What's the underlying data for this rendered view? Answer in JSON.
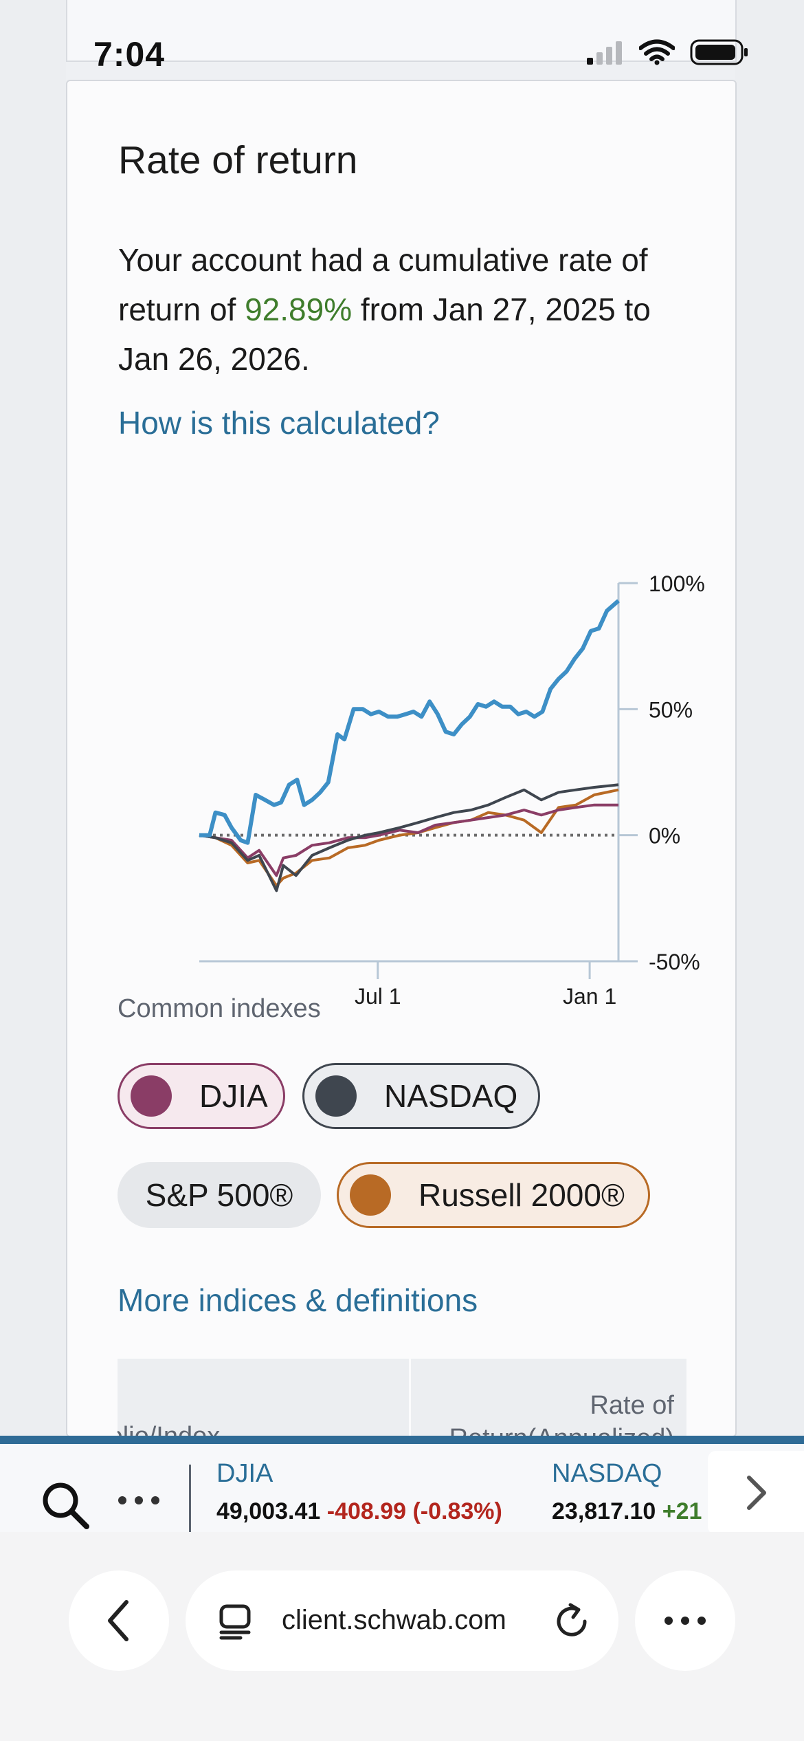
{
  "status_bar": {
    "time": "7:04"
  },
  "card": {
    "title": "Rate of return",
    "summary_prefix": "Your account had a cumulative rate of return of ",
    "summary_value": "92.89%",
    "summary_suffix": " from Jan 27, 2025 to Jan 26, 2026.",
    "how_link": "How is this calculated?"
  },
  "chart_data": {
    "type": "line",
    "x_tick_labels": [
      "Jul 1",
      "Jan 1"
    ],
    "y_tick_labels": [
      "100%",
      "50%",
      "0%",
      "-50%"
    ],
    "ylim": [
      -50,
      100
    ],
    "baseline": 0,
    "series": [
      {
        "color": "#3d8fc6",
        "points": [
          [
            "2025-01-27",
            0
          ],
          [
            "2025-02-05",
            0
          ],
          [
            "2025-02-10",
            9
          ],
          [
            "2025-02-18",
            8
          ],
          [
            "2025-02-24",
            3
          ],
          [
            "2025-03-04",
            -2
          ],
          [
            "2025-03-10",
            -3
          ],
          [
            "2025-03-17",
            16
          ],
          [
            "2025-03-25",
            14
          ],
          [
            "2025-04-02",
            12
          ],
          [
            "2025-04-08",
            13
          ],
          [
            "2025-04-15",
            20
          ],
          [
            "2025-04-22",
            22
          ],
          [
            "2025-04-28",
            12
          ],
          [
            "2025-05-05",
            14
          ],
          [
            "2025-05-12",
            17
          ],
          [
            "2025-05-19",
            21
          ],
          [
            "2025-05-27",
            40
          ],
          [
            "2025-06-02",
            38
          ],
          [
            "2025-06-10",
            50
          ],
          [
            "2025-06-18",
            50
          ],
          [
            "2025-06-25",
            48
          ],
          [
            "2025-07-02",
            49
          ],
          [
            "2025-07-10",
            47
          ],
          [
            "2025-07-18",
            47
          ],
          [
            "2025-07-25",
            48
          ],
          [
            "2025-08-01",
            49
          ],
          [
            "2025-08-08",
            47
          ],
          [
            "2025-08-15",
            53
          ],
          [
            "2025-08-22",
            48
          ],
          [
            "2025-08-29",
            41
          ],
          [
            "2025-09-05",
            40
          ],
          [
            "2025-09-12",
            44
          ],
          [
            "2025-09-19",
            47
          ],
          [
            "2025-09-26",
            52
          ],
          [
            "2025-10-03",
            51
          ],
          [
            "2025-10-10",
            53
          ],
          [
            "2025-10-17",
            51
          ],
          [
            "2025-10-24",
            51
          ],
          [
            "2025-10-31",
            48
          ],
          [
            "2025-11-07",
            49
          ],
          [
            "2025-11-14",
            47
          ],
          [
            "2025-11-21",
            49
          ],
          [
            "2025-11-28",
            58
          ],
          [
            "2025-12-05",
            62
          ],
          [
            "2025-12-12",
            65
          ],
          [
            "2025-12-19",
            70
          ],
          [
            "2025-12-26",
            74
          ],
          [
            "2026-01-02",
            81
          ],
          [
            "2026-01-09",
            82
          ],
          [
            "2026-01-16",
            89
          ],
          [
            "2026-01-26",
            93
          ]
        ]
      },
      {
        "name": "DJIA",
        "color": "#8a3d66",
        "points": [
          [
            "2025-01-27",
            0
          ],
          [
            "2025-02-10",
            -1
          ],
          [
            "2025-02-24",
            -2
          ],
          [
            "2025-03-10",
            -9
          ],
          [
            "2025-03-20",
            -6
          ],
          [
            "2025-04-04",
            -16
          ],
          [
            "2025-04-10",
            -9
          ],
          [
            "2025-04-21",
            -8
          ],
          [
            "2025-05-05",
            -4
          ],
          [
            "2025-05-20",
            -3
          ],
          [
            "2025-06-05",
            -1
          ],
          [
            "2025-06-20",
            -1
          ],
          [
            "2025-07-02",
            0
          ],
          [
            "2025-07-20",
            2
          ],
          [
            "2025-08-05",
            1
          ],
          [
            "2025-08-20",
            4
          ],
          [
            "2025-09-05",
            5
          ],
          [
            "2025-09-20",
            6
          ],
          [
            "2025-10-05",
            7
          ],
          [
            "2025-10-20",
            8
          ],
          [
            "2025-11-05",
            10
          ],
          [
            "2025-11-20",
            8
          ],
          [
            "2025-12-05",
            10
          ],
          [
            "2025-12-20",
            11
          ],
          [
            "2026-01-05",
            12
          ],
          [
            "2026-01-26",
            12
          ]
        ]
      },
      {
        "name": "NASDAQ",
        "color": "#3f464f",
        "points": [
          [
            "2025-01-27",
            0
          ],
          [
            "2025-02-10",
            -1
          ],
          [
            "2025-02-24",
            -3
          ],
          [
            "2025-03-10",
            -10
          ],
          [
            "2025-03-20",
            -8
          ],
          [
            "2025-04-04",
            -22
          ],
          [
            "2025-04-10",
            -12
          ],
          [
            "2025-04-21",
            -16
          ],
          [
            "2025-05-05",
            -8
          ],
          [
            "2025-05-20",
            -5
          ],
          [
            "2025-06-05",
            -2
          ],
          [
            "2025-06-20",
            0
          ],
          [
            "2025-07-02",
            1
          ],
          [
            "2025-07-20",
            3
          ],
          [
            "2025-08-05",
            5
          ],
          [
            "2025-08-20",
            7
          ],
          [
            "2025-09-05",
            9
          ],
          [
            "2025-09-20",
            10
          ],
          [
            "2025-10-05",
            12
          ],
          [
            "2025-10-20",
            15
          ],
          [
            "2025-11-05",
            18
          ],
          [
            "2025-11-20",
            14
          ],
          [
            "2025-12-05",
            17
          ],
          [
            "2025-12-20",
            18
          ],
          [
            "2026-01-05",
            19
          ],
          [
            "2026-01-26",
            20
          ]
        ]
      },
      {
        "name": "Russell 2000®",
        "color": "#b86a25",
        "points": [
          [
            "2025-01-27",
            0
          ],
          [
            "2025-02-10",
            -1
          ],
          [
            "2025-02-24",
            -4
          ],
          [
            "2025-03-10",
            -11
          ],
          [
            "2025-03-20",
            -10
          ],
          [
            "2025-04-04",
            -20
          ],
          [
            "2025-04-10",
            -17
          ],
          [
            "2025-04-21",
            -15
          ],
          [
            "2025-05-05",
            -10
          ],
          [
            "2025-05-20",
            -9
          ],
          [
            "2025-06-05",
            -5
          ],
          [
            "2025-06-20",
            -4
          ],
          [
            "2025-07-02",
            -2
          ],
          [
            "2025-07-20",
            0
          ],
          [
            "2025-08-05",
            1
          ],
          [
            "2025-08-20",
            3
          ],
          [
            "2025-09-05",
            5
          ],
          [
            "2025-09-20",
            6
          ],
          [
            "2025-10-05",
            9
          ],
          [
            "2025-10-20",
            8
          ],
          [
            "2025-11-05",
            6
          ],
          [
            "2025-11-20",
            1
          ],
          [
            "2025-12-05",
            11
          ],
          [
            "2025-12-20",
            12
          ],
          [
            "2026-01-05",
            16
          ],
          [
            "2026-01-26",
            18
          ]
        ]
      }
    ]
  },
  "indexes": {
    "label": "Common indexes",
    "chips": [
      {
        "label": "DJIA",
        "color": "#8a3d66",
        "selected": true
      },
      {
        "label": "NASDAQ",
        "color": "#3f464f",
        "selected": true
      },
      {
        "label": "S&P 500®",
        "selected": false
      },
      {
        "label": "Russell 2000®",
        "color": "#b86a25",
        "selected": true
      }
    ],
    "more_link": "More indices & definitions"
  },
  "table": {
    "col1_header": "folio/Index",
    "col2_header_line1": "Rate of",
    "col2_header_line2": "Return(Annualized)"
  },
  "ticker": {
    "items": [
      {
        "name": "DJIA",
        "value": "49,003.41",
        "change": "-408.99 (-0.83%)",
        "direction": "down"
      },
      {
        "name": "NASDAQ",
        "value": "23,817.10",
        "change": "+21",
        "direction": "up"
      }
    ]
  },
  "browser": {
    "url": "client.schwab.com"
  }
}
